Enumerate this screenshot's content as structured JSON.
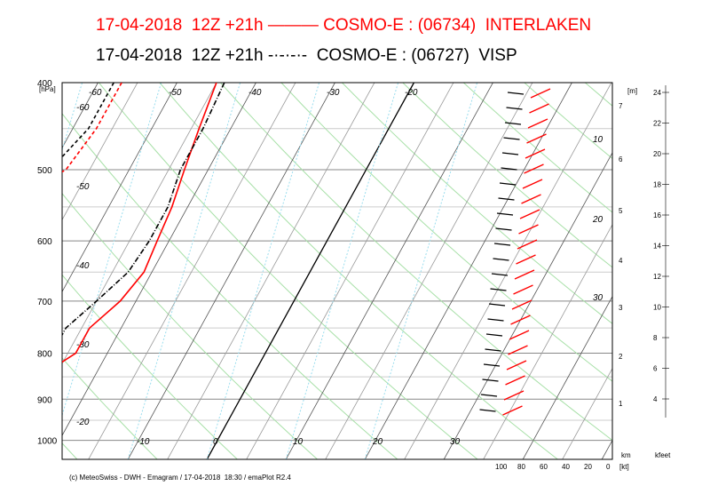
{
  "title_line1": "17-04-2018  12Z +21h ——— COSMO-E : (06734)  INTERLAKEN",
  "title_line2": "17-04-2018  12Z +21h -·-·-·-  COSMO-E : (06727)  VISP",
  "footer": "(c) MeteoSwiss - DWH - Emagram / 17-04-2018  18:30 / emaPlot R2.4",
  "colors": {
    "interlaken": "#ff0000",
    "visp": "#000000",
    "isotherm": "#444444",
    "dry_adiabat": "#bbbbbb",
    "mixing_ratio": "#66cc66",
    "frost": "#99ddee"
  },
  "chart_data": {
    "type": "line",
    "title": "",
    "y_unit": "[hPa]",
    "y_scale": "log",
    "ylim": [
      1000,
      400
    ],
    "pressure_ticks": [
      "400",
      "500",
      "600",
      "700",
      "800",
      "900",
      "1000"
    ],
    "temperature_labels": [
      "-60",
      "-50",
      "-40",
      "-30",
      "-20",
      "-60",
      "-50",
      "-40",
      "-30",
      "-20",
      "-10",
      "0",
      "10",
      "20",
      "30"
    ],
    "wind_axis_labels": [
      "100",
      "80",
      "60",
      "40",
      "20",
      "0"
    ],
    "wind_unit": "[kt]",
    "height_m_unit": "[m]",
    "height_m_ticks": [
      "7",
      "6",
      "5",
      "4",
      "3",
      "2",
      "1"
    ],
    "height_km_unit": "km",
    "height_kfeet_unit": "kfeet",
    "height_kfeet_ticks": [
      "24",
      "22",
      "20",
      "18",
      "16",
      "14",
      "12",
      "10",
      "8",
      "6",
      "4"
    ],
    "mixing_ratio_labels": [
      "10",
      "20",
      "30"
    ],
    "series": [
      {
        "name": "INTERLAKEN",
        "style": "solid",
        "color": "#ff0000",
        "temperature": [
          [
            400,
            -25
          ],
          [
            450,
            -24
          ],
          [
            500,
            -23
          ],
          [
            550,
            -22
          ],
          [
            600,
            -21.5
          ],
          [
            650,
            -21
          ],
          [
            700,
            -22
          ],
          [
            750,
            -24
          ],
          [
            800,
            -24
          ],
          [
            850,
            -27
          ],
          [
            900,
            -28
          ],
          [
            940,
            -26
          ]
        ],
        "dewpoint": [
          [
            400,
            -37
          ],
          [
            450,
            -37
          ],
          [
            500,
            -38
          ],
          [
            550,
            -44
          ],
          [
            600,
            -46
          ],
          [
            650,
            -48
          ],
          [
            700,
            -48
          ],
          [
            750,
            -45
          ],
          [
            800,
            -45
          ],
          [
            850,
            -44
          ],
          [
            900,
            -43
          ],
          [
            940,
            -43
          ]
        ]
      },
      {
        "name": "VISP",
        "style": "dashdot",
        "color": "#000000",
        "temperature": [
          [
            400,
            -24
          ],
          [
            450,
            -23.5
          ],
          [
            500,
            -23.5
          ],
          [
            550,
            -22.5
          ],
          [
            600,
            -22.5
          ],
          [
            650,
            -23
          ],
          [
            700,
            -25
          ],
          [
            750,
            -27
          ],
          [
            800,
            -27
          ],
          [
            850,
            -31
          ],
          [
            900,
            -33
          ],
          [
            910,
            -34
          ]
        ],
        "dewpoint": [
          [
            400,
            -38
          ],
          [
            450,
            -38
          ],
          [
            500,
            -40
          ],
          [
            550,
            -43
          ],
          [
            600,
            -46
          ],
          [
            650,
            -45
          ],
          [
            700,
            -43
          ],
          [
            750,
            -38
          ],
          [
            800,
            -39
          ],
          [
            850,
            -42
          ],
          [
            880,
            -43
          ]
        ]
      }
    ]
  }
}
